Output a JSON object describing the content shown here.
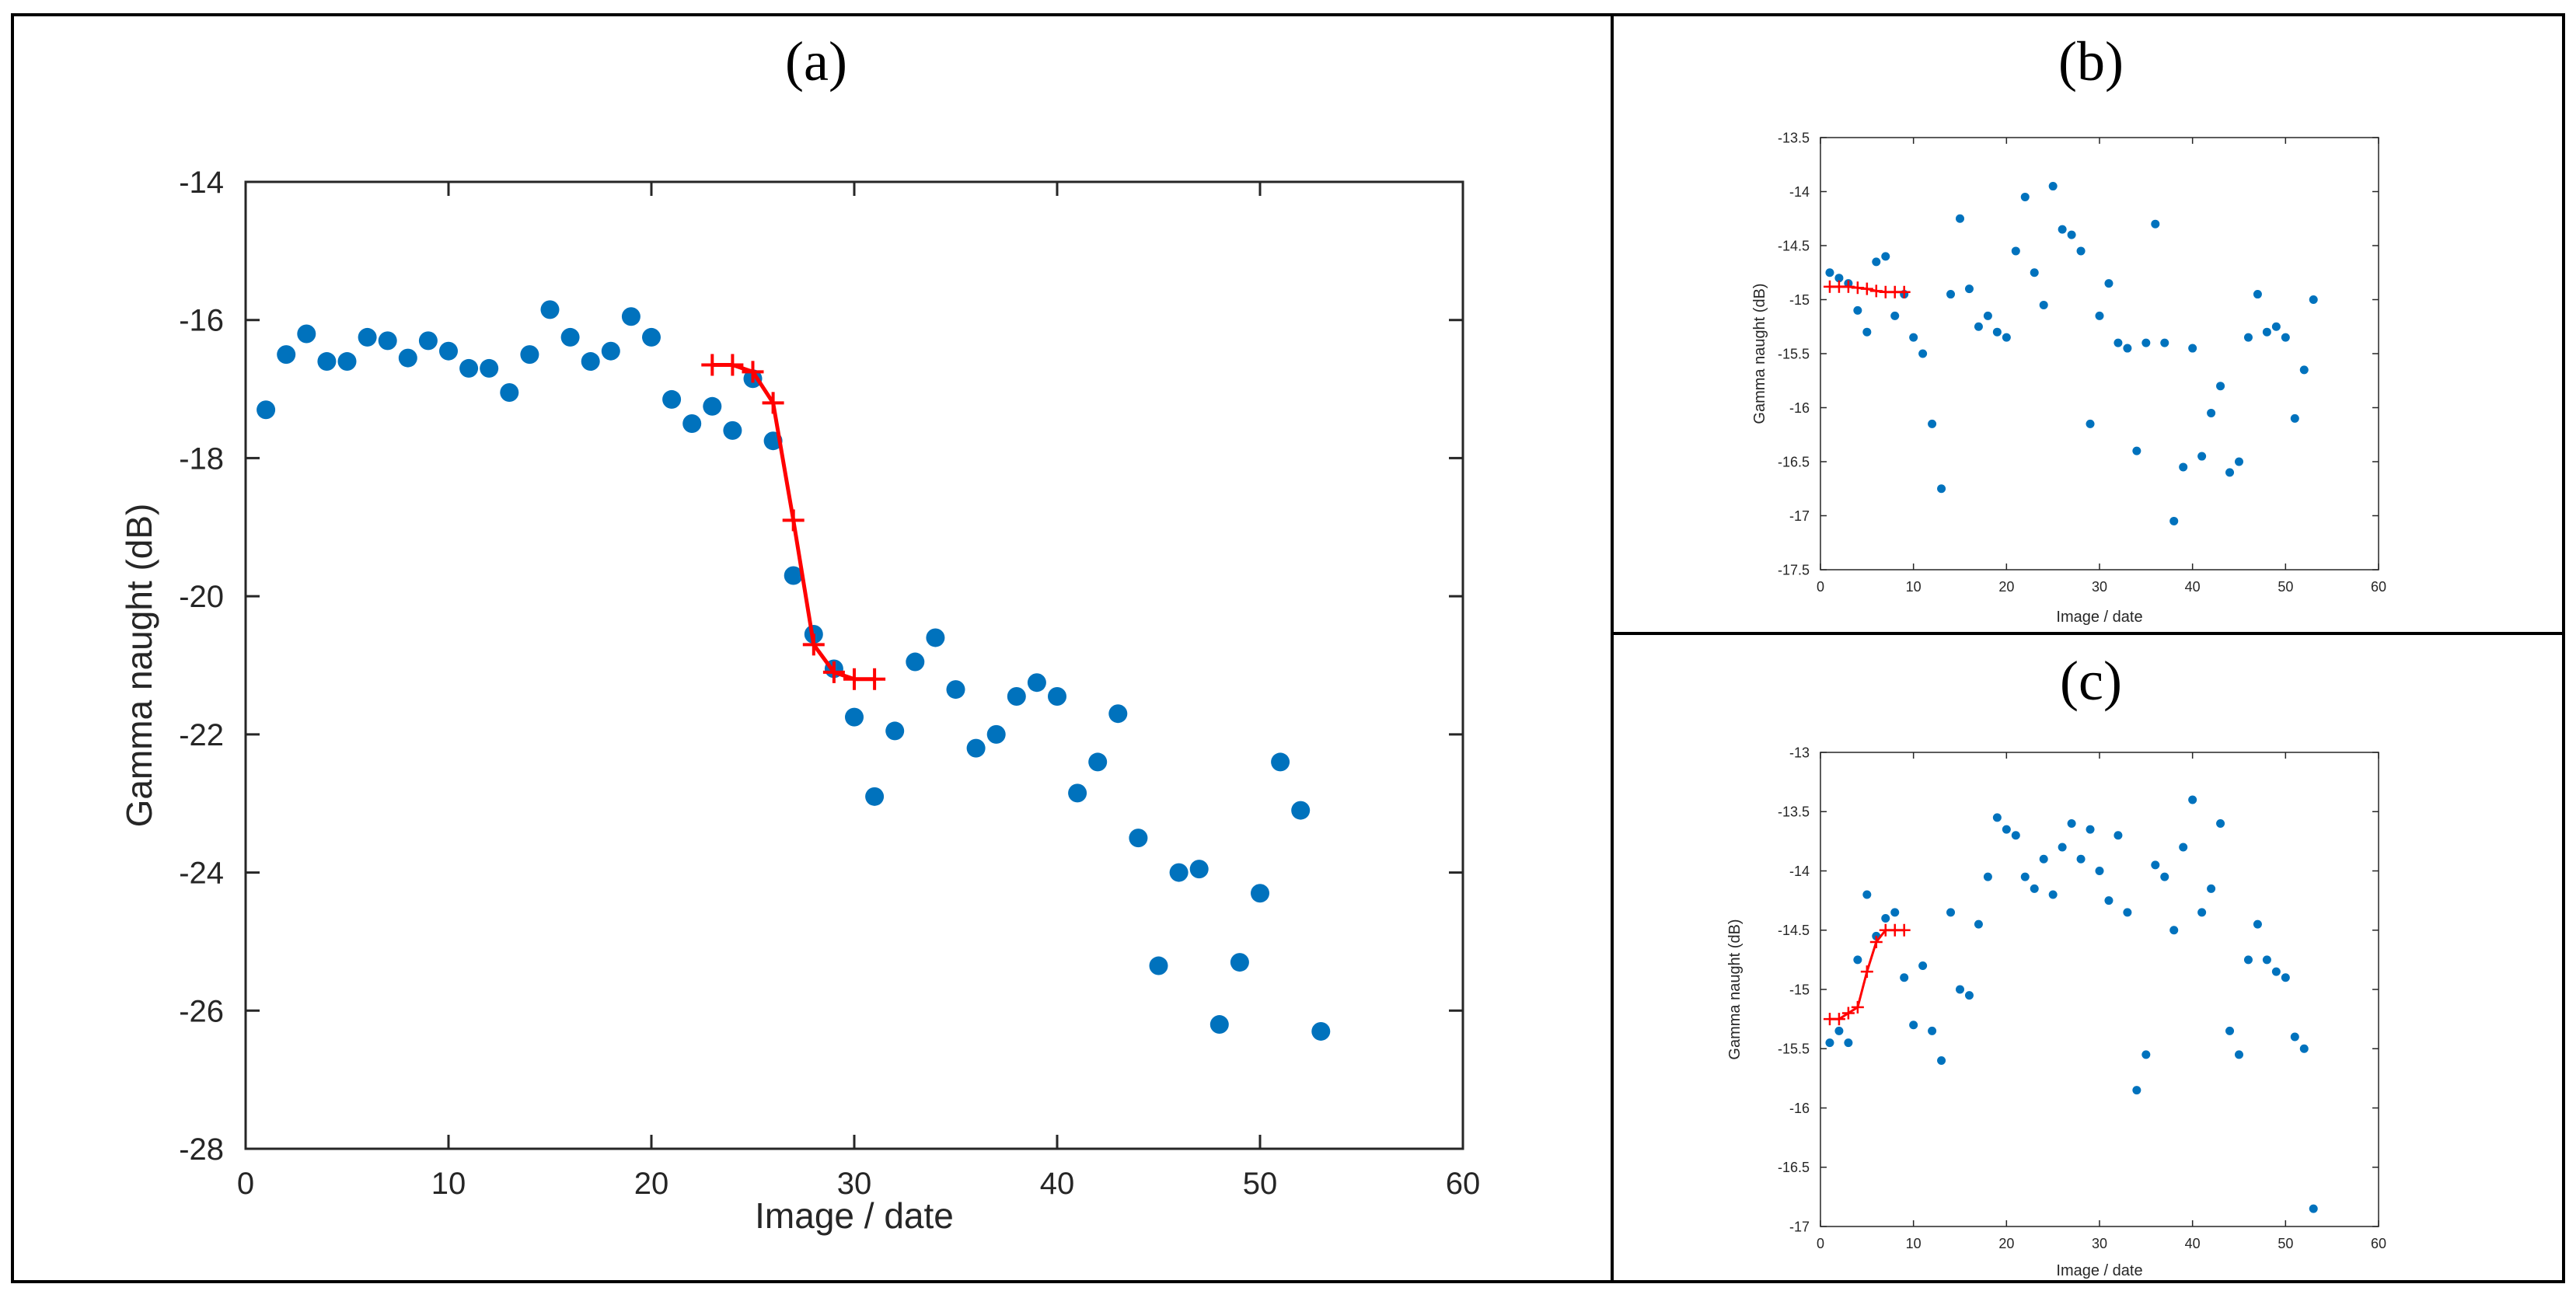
{
  "chart_data": [
    {
      "type": "scatter",
      "panel_label": "(a)",
      "xlabel": "Image / date",
      "ylabel": "Gamma naught (dB)",
      "xlim": [
        0,
        60
      ],
      "ylim": [
        -28,
        -14
      ],
      "xticks": [
        0,
        10,
        20,
        30,
        40,
        50,
        60
      ],
      "yticks": [
        -28,
        -26,
        -24,
        -22,
        -20,
        -18,
        -16,
        -14
      ],
      "series": [
        {
          "name": "observations",
          "marker": "dot",
          "color": "#0072BD",
          "x": [
            1,
            2,
            3,
            4,
            5,
            6,
            7,
            8,
            9,
            10,
            11,
            12,
            13,
            14,
            15,
            16,
            17,
            18,
            19,
            20,
            21,
            22,
            23,
            24,
            25,
            26,
            27,
            28,
            29,
            30,
            31,
            32,
            33,
            34,
            35,
            36,
            37,
            38,
            39,
            40,
            41,
            42,
            43,
            44,
            45,
            46,
            47,
            48,
            49,
            50,
            51,
            52,
            53
          ],
          "y": [
            -17.3,
            -16.5,
            -16.2,
            -16.6,
            -16.6,
            -16.25,
            -16.3,
            -16.55,
            -16.3,
            -16.45,
            -16.7,
            -16.7,
            -17.05,
            -16.5,
            -15.85,
            -16.25,
            -16.6,
            -16.45,
            -15.95,
            -16.25,
            -17.15,
            -17.5,
            -17.25,
            -17.6,
            -16.85,
            -17.75,
            -19.7,
            -20.55,
            -21.05,
            -21.75,
            -22.9,
            -21.95,
            -20.95,
            -20.6,
            -21.35,
            -22.2,
            -22.0,
            -21.45,
            -21.25,
            -21.45,
            -22.85,
            -22.4,
            -21.7,
            -23.5,
            -25.35,
            -24.0,
            -23.95,
            -26.2,
            -25.3,
            -24.3,
            -22.4,
            -23.1,
            -26.3
          ]
        },
        {
          "name": "fitted",
          "marker": "plus-line",
          "color": "#ff0000",
          "x": [
            23,
            24,
            25,
            26,
            27,
            28,
            29,
            30,
            31
          ],
          "y": [
            -16.65,
            -16.65,
            -16.75,
            -17.2,
            -18.9,
            -20.7,
            -21.1,
            -21.2,
            -21.2
          ]
        }
      ]
    },
    {
      "type": "scatter",
      "panel_label": "(b)",
      "xlabel": "Image / date",
      "ylabel": "Gamma naught (dB)",
      "xlim": [
        0,
        60
      ],
      "ylim": [
        -17.5,
        -13.5
      ],
      "xticks": [
        0,
        10,
        20,
        30,
        40,
        50,
        60
      ],
      "yticks": [
        -17.5,
        -17,
        -16.5,
        -16,
        -15.5,
        -15,
        -14.5,
        -14,
        -13.5
      ],
      "series": [
        {
          "name": "observations",
          "marker": "dot",
          "color": "#0072BD",
          "x": [
            1,
            2,
            3,
            4,
            5,
            6,
            7,
            8,
            9,
            10,
            11,
            12,
            13,
            14,
            15,
            16,
            17,
            18,
            19,
            20,
            21,
            22,
            23,
            24,
            25,
            26,
            27,
            28,
            29,
            30,
            31,
            32,
            33,
            34,
            35,
            36,
            37,
            38,
            39,
            40,
            41,
            42,
            43,
            44,
            45,
            46,
            47,
            48,
            49,
            50,
            51,
            52,
            53
          ],
          "y": [
            -14.75,
            -14.8,
            -14.85,
            -15.1,
            -15.3,
            -14.65,
            -14.6,
            -15.15,
            -14.95,
            -15.35,
            -15.5,
            -16.15,
            -16.75,
            -14.95,
            -14.25,
            -14.9,
            -15.25,
            -15.15,
            -15.3,
            -15.35,
            -14.55,
            -14.05,
            -14.75,
            -15.05,
            -13.95,
            -14.35,
            -14.4,
            -14.55,
            -16.15,
            -15.15,
            -14.85,
            -15.4,
            -15.45,
            -16.4,
            -15.4,
            -14.3,
            -15.4,
            -17.05,
            -16.55,
            -15.45,
            -16.45,
            -16.05,
            -15.8,
            -16.6,
            -16.5,
            -15.35,
            -14.95,
            -15.3,
            -15.25,
            -15.35,
            -16.1,
            -15.65,
            -15.0
          ]
        },
        {
          "name": "fitted",
          "marker": "plus-line",
          "color": "#ff0000",
          "x": [
            1,
            2,
            3,
            4,
            5,
            6,
            7,
            8,
            9
          ],
          "y": [
            -14.88,
            -14.88,
            -14.88,
            -14.89,
            -14.9,
            -14.92,
            -14.93,
            -14.93,
            -14.93
          ]
        }
      ]
    },
    {
      "type": "scatter",
      "panel_label": "(c)",
      "xlabel": "Image / date",
      "ylabel": "Gamma naught (dB)",
      "xlim": [
        0,
        60
      ],
      "ylim": [
        -17,
        -13
      ],
      "xticks": [
        0,
        10,
        20,
        30,
        40,
        50,
        60
      ],
      "yticks": [
        -17,
        -16.5,
        -16,
        -15.5,
        -15,
        -14.5,
        -14,
        -13.5,
        -13
      ],
      "series": [
        {
          "name": "observations",
          "marker": "dot",
          "color": "#0072BD",
          "x": [
            1,
            2,
            3,
            4,
            5,
            6,
            7,
            8,
            9,
            10,
            11,
            12,
            13,
            14,
            15,
            16,
            17,
            18,
            19,
            20,
            21,
            22,
            23,
            24,
            25,
            26,
            27,
            28,
            29,
            30,
            31,
            32,
            33,
            34,
            35,
            36,
            37,
            38,
            39,
            40,
            41,
            42,
            43,
            44,
            45,
            46,
            47,
            48,
            49,
            50,
            51,
            52,
            53
          ],
          "y": [
            -15.45,
            -15.35,
            -15.45,
            -14.75,
            -14.2,
            -14.55,
            -14.4,
            -14.35,
            -14.9,
            -15.3,
            -14.8,
            -15.35,
            -15.6,
            -14.35,
            -15.0,
            -15.05,
            -14.45,
            -14.05,
            -13.55,
            -13.65,
            -13.7,
            -14.05,
            -14.15,
            -13.9,
            -14.2,
            -13.8,
            -13.6,
            -13.9,
            -13.65,
            -14.0,
            -14.25,
            -13.7,
            -14.35,
            -15.85,
            -15.55,
            -13.95,
            -14.05,
            -14.5,
            -13.8,
            -13.4,
            -14.35,
            -14.15,
            -13.6,
            -15.35,
            -15.55,
            -14.75,
            -14.45,
            -14.75,
            -14.85,
            -14.9,
            -15.4,
            -15.5,
            -16.85
          ]
        },
        {
          "name": "fitted",
          "marker": "plus-line",
          "color": "#ff0000",
          "x": [
            1,
            2,
            3,
            4,
            5,
            6,
            7,
            8,
            9
          ],
          "y": [
            -15.25,
            -15.25,
            -15.2,
            -15.15,
            -14.85,
            -14.6,
            -14.5,
            -14.5,
            -14.5
          ]
        }
      ]
    }
  ]
}
